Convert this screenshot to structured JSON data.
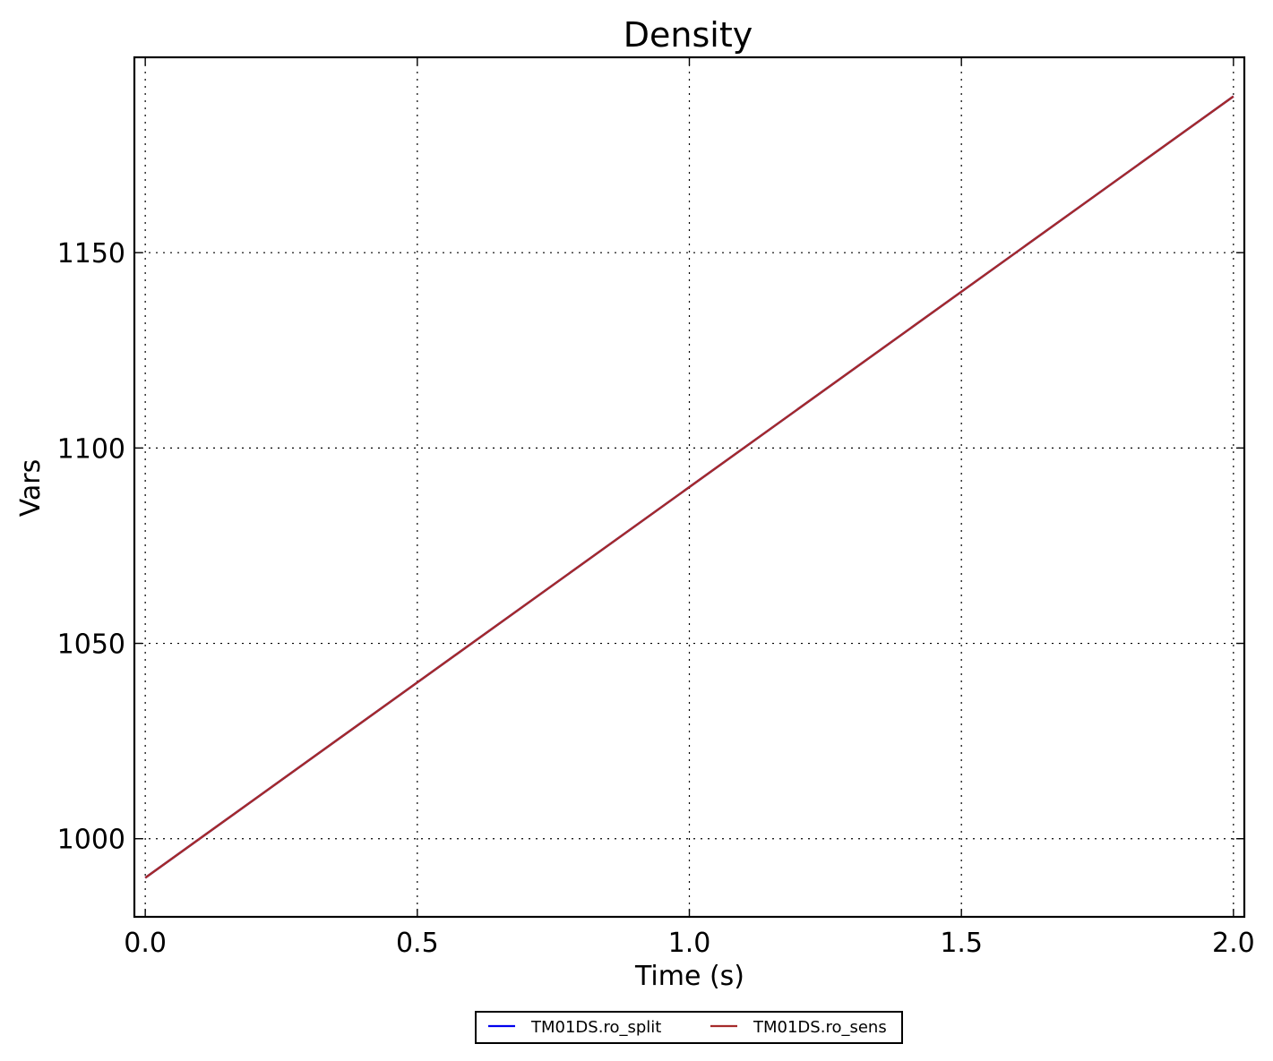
{
  "chart_data": {
    "type": "line",
    "title": "Density",
    "xlabel": "Time (s)",
    "ylabel": "Vars",
    "xlim": [
      -0.02,
      2.02
    ],
    "ylim": [
      980,
      1200
    ],
    "xticks": [
      0.0,
      0.5,
      1.0,
      1.5,
      2.0
    ],
    "xtick_labels": [
      "0.0",
      "0.5",
      "1.0",
      "1.5",
      "2.0"
    ],
    "yticks": [
      1000,
      1050,
      1100,
      1150
    ],
    "ytick_labels": [
      "1000",
      "1050",
      "1100",
      "1150"
    ],
    "grid": true,
    "legend_position": "bottom-center",
    "series": [
      {
        "name": "TM01DS.ro_split",
        "color": "#0000ee",
        "x": [
          0.0,
          2.0
        ],
        "y": [
          990,
          1190
        ]
      },
      {
        "name": "TM01DS.ro_sens",
        "color": "#a52a2a",
        "x": [
          0.0,
          2.0
        ],
        "y": [
          990,
          1190
        ]
      }
    ]
  }
}
